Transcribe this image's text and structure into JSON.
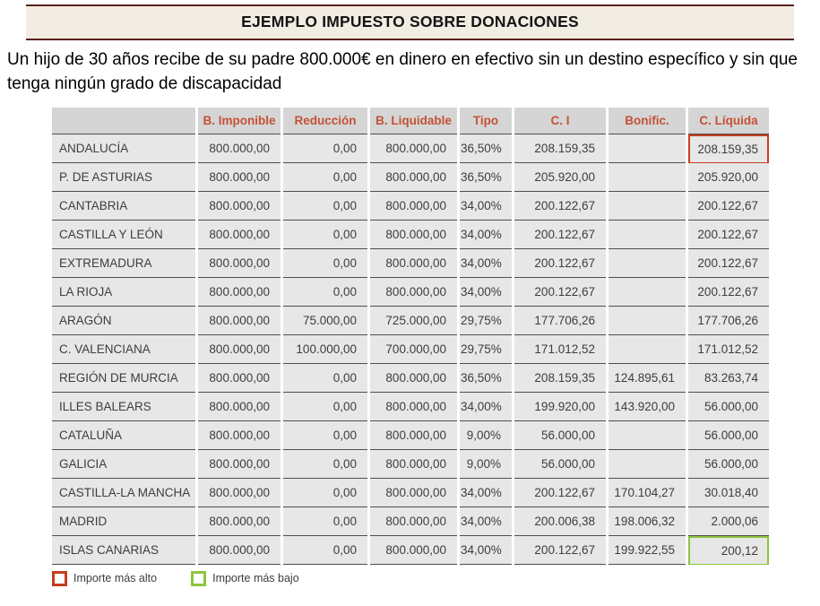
{
  "title": "EJEMPLO IMPUESTO SOBRE DONACIONES",
  "description": "Un hijo de 30 años recibe de su padre 800.000€ en dinero en efectivo sin un destino específico y sin que tenga ningún grado de discapacidad",
  "table": {
    "columns": [
      "",
      "B. Imponible",
      "Reducción",
      "B. Liquidable",
      "Tipo",
      "C. I",
      "Bonific.",
      "C. Líquida"
    ],
    "rows": [
      {
        "region": "ANDALUCÍA",
        "b_imponible": "800.000,00",
        "reduccion": "0,00",
        "b_liquidable": "800.000,00",
        "tipo": "36,50%",
        "ci": "208.159,35",
        "bonific": "",
        "c_liquida": "208.159,35",
        "highlight": "high"
      },
      {
        "region": "P. DE ASTURIAS",
        "b_imponible": "800.000,00",
        "reduccion": "0,00",
        "b_liquidable": "800.000,00",
        "tipo": "36,50%",
        "ci": "205.920,00",
        "bonific": "",
        "c_liquida": "205.920,00",
        "highlight": ""
      },
      {
        "region": "CANTABRIA",
        "b_imponible": "800.000,00",
        "reduccion": "0,00",
        "b_liquidable": "800.000,00",
        "tipo": "34,00%",
        "ci": "200.122,67",
        "bonific": "",
        "c_liquida": "200.122,67",
        "highlight": ""
      },
      {
        "region": "CASTILLA Y LEÓN",
        "b_imponible": "800.000,00",
        "reduccion": "0,00",
        "b_liquidable": "800.000,00",
        "tipo": "34,00%",
        "ci": "200.122,67",
        "bonific": "",
        "c_liquida": "200.122,67",
        "highlight": ""
      },
      {
        "region": "EXTREMADURA",
        "b_imponible": "800.000,00",
        "reduccion": "0,00",
        "b_liquidable": "800.000,00",
        "tipo": "34,00%",
        "ci": "200.122,67",
        "bonific": "",
        "c_liquida": "200.122,67",
        "highlight": ""
      },
      {
        "region": "LA RIOJA",
        "b_imponible": "800.000,00",
        "reduccion": "0,00",
        "b_liquidable": "800.000,00",
        "tipo": "34,00%",
        "ci": "200.122,67",
        "bonific": "",
        "c_liquida": "200.122,67",
        "highlight": ""
      },
      {
        "region": "ARAGÓN",
        "b_imponible": "800.000,00",
        "reduccion": "75.000,00",
        "b_liquidable": "725.000,00",
        "tipo": "29,75%",
        "ci": "177.706,26",
        "bonific": "",
        "c_liquida": "177.706,26",
        "highlight": ""
      },
      {
        "region": "C. VALENCIANA",
        "b_imponible": "800.000,00",
        "reduccion": "100.000,00",
        "b_liquidable": "700.000,00",
        "tipo": "29,75%",
        "ci": "171.012,52",
        "bonific": "",
        "c_liquida": "171.012,52",
        "highlight": ""
      },
      {
        "region": "REGIÓN DE MURCIA",
        "b_imponible": "800.000,00",
        "reduccion": "0,00",
        "b_liquidable": "800.000,00",
        "tipo": "36,50%",
        "ci": "208.159,35",
        "bonific": "124.895,61",
        "c_liquida": "83.263,74",
        "highlight": ""
      },
      {
        "region": "ILLES BALEARS",
        "b_imponible": "800.000,00",
        "reduccion": "0,00",
        "b_liquidable": "800.000,00",
        "tipo": "34,00%",
        "ci": "199.920,00",
        "bonific": "143.920,00",
        "c_liquida": "56.000,00",
        "highlight": ""
      },
      {
        "region": "CATALUÑA",
        "b_imponible": "800.000,00",
        "reduccion": "0,00",
        "b_liquidable": "800.000,00",
        "tipo": "9,00%",
        "ci": "56.000,00",
        "bonific": "",
        "c_liquida": "56.000,00",
        "highlight": ""
      },
      {
        "region": "GALICIA",
        "b_imponible": "800.000,00",
        "reduccion": "0,00",
        "b_liquidable": "800.000,00",
        "tipo": "9,00%",
        "ci": "56.000,00",
        "bonific": "",
        "c_liquida": "56.000,00",
        "highlight": ""
      },
      {
        "region": "CASTILLA-LA MANCHA",
        "b_imponible": "800.000,00",
        "reduccion": "0,00",
        "b_liquidable": "800.000,00",
        "tipo": "34,00%",
        "ci": "200.122,67",
        "bonific": "170.104,27",
        "c_liquida": "30.018,40",
        "highlight": ""
      },
      {
        "region": "MADRID",
        "b_imponible": "800.000,00",
        "reduccion": "0,00",
        "b_liquidable": "800.000,00",
        "tipo": "34,00%",
        "ci": "200.006,38",
        "bonific": "198.006,32",
        "c_liquida": "2.000,06",
        "highlight": ""
      },
      {
        "region": "ISLAS CANARIAS",
        "b_imponible": "800.000,00",
        "reduccion": "0,00",
        "b_liquidable": "800.000,00",
        "tipo": "34,00%",
        "ci": "200.122,67",
        "bonific": "199.922,55",
        "c_liquida": "200,12",
        "highlight": "low"
      }
    ]
  },
  "legend": {
    "high": {
      "label": "Importe más alto"
    },
    "low": {
      "label": "Importe más bajo"
    }
  },
  "colors": {
    "header_text": "#c45236",
    "highlight_high": "#c63d1d",
    "highlight_low": "#8dc63f",
    "banner_bg": "#f2ede3",
    "banner_border": "#5a211c"
  }
}
